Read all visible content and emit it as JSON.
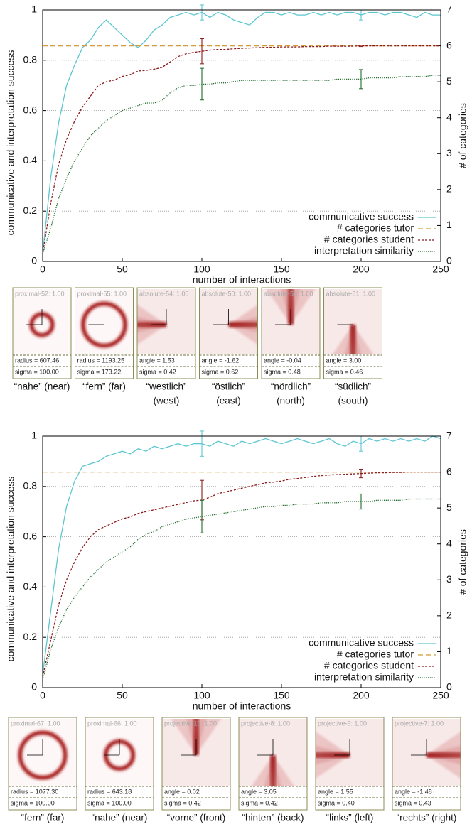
{
  "chart_data": [
    {
      "type": "line",
      "xlabel": "number of interactions",
      "ylabel": "communicative and interpretation success",
      "y2label": "# of categories",
      "xlim": [
        0,
        250
      ],
      "xticks": [
        0,
        50,
        100,
        150,
        200,
        250
      ],
      "ylim": [
        0,
        1
      ],
      "yticks": [
        0,
        0.2,
        0.4,
        0.6,
        0.8,
        1
      ],
      "y2lim": [
        0,
        7
      ],
      "y2ticks": [
        0,
        1,
        2,
        3,
        4,
        5,
        6,
        7
      ],
      "grid": true,
      "legend": "lower right",
      "x": [
        0,
        5,
        10,
        15,
        20,
        25,
        30,
        35,
        40,
        45,
        50,
        55,
        60,
        65,
        70,
        75,
        80,
        85,
        90,
        95,
        100,
        105,
        110,
        115,
        120,
        125,
        130,
        135,
        140,
        145,
        150,
        155,
        160,
        165,
        170,
        175,
        180,
        185,
        190,
        195,
        200,
        205,
        210,
        215,
        220,
        225,
        230,
        235,
        240,
        245,
        250
      ],
      "series": [
        {
          "name": "communicative success",
          "color": "#5cc6d0",
          "style": "solid",
          "axis": "y",
          "values": [
            0.03,
            0.33,
            0.55,
            0.7,
            0.78,
            0.85,
            0.88,
            0.93,
            0.96,
            0.93,
            0.9,
            0.87,
            0.85,
            0.88,
            0.92,
            0.94,
            0.97,
            0.98,
            0.99,
            0.98,
            0.99,
            0.97,
            0.99,
            0.98,
            0.96,
            0.95,
            0.94,
            0.97,
            0.99,
            0.99,
            0.98,
            0.99,
            0.98,
            0.98,
            0.99,
            0.98,
            0.99,
            0.98,
            0.99,
            0.99,
            0.98,
            0.99,
            0.99,
            0.98,
            0.99,
            0.99,
            0.98,
            0.97,
            0.99,
            0.98,
            0.98
          ],
          "error_x": [
            100,
            200
          ],
          "errors": [
            0.03,
            0.02
          ]
        },
        {
          "name": "# categories tutor",
          "color": "#d49a3a",
          "style": "long-dash",
          "axis": "y2",
          "values": [
            6,
            6,
            6,
            6,
            6,
            6,
            6,
            6,
            6,
            6,
            6,
            6,
            6,
            6,
            6,
            6,
            6,
            6,
            6,
            6,
            6,
            6,
            6,
            6,
            6,
            6,
            6,
            6,
            6,
            6,
            6,
            6,
            6,
            6,
            6,
            6,
            6,
            6,
            6,
            6,
            6,
            6,
            6,
            6,
            6,
            6,
            6,
            6,
            6,
            6,
            6
          ]
        },
        {
          "name": "# categories student",
          "color": "#8b1a1a",
          "style": "short-dash",
          "axis": "y2",
          "values": [
            0.2,
            1.6,
            2.7,
            3.4,
            3.9,
            4.3,
            4.6,
            4.9,
            5.0,
            5.05,
            5.15,
            5.2,
            5.3,
            5.32,
            5.35,
            5.4,
            5.55,
            5.7,
            5.78,
            5.82,
            5.85,
            5.88,
            5.9,
            5.9,
            5.92,
            5.93,
            5.94,
            5.95,
            5.96,
            5.96,
            5.97,
            5.97,
            5.97,
            5.98,
            5.98,
            5.98,
            5.99,
            5.99,
            5.99,
            5.99,
            6,
            6,
            6,
            6,
            6,
            6,
            6,
            6,
            6,
            6,
            6
          ],
          "error_x": [
            100,
            200
          ],
          "errors": [
            0.35,
            0.02
          ]
        },
        {
          "name": "interpretation similarity",
          "color": "#1f6b2a",
          "style": "dotted",
          "axis": "y",
          "values": [
            0.03,
            0.13,
            0.25,
            0.33,
            0.4,
            0.45,
            0.5,
            0.53,
            0.56,
            0.58,
            0.6,
            0.61,
            0.62,
            0.63,
            0.63,
            0.64,
            0.67,
            0.69,
            0.7,
            0.7,
            0.705,
            0.705,
            0.71,
            0.71,
            0.715,
            0.72,
            0.72,
            0.72,
            0.72,
            0.72,
            0.72,
            0.72,
            0.72,
            0.72,
            0.72,
            0.72,
            0.72,
            0.725,
            0.725,
            0.725,
            0.725,
            0.73,
            0.73,
            0.73,
            0.73,
            0.735,
            0.735,
            0.735,
            0.735,
            0.74,
            0.74
          ],
          "error_x": [
            100,
            200
          ],
          "errors": [
            0.063,
            0.038
          ]
        }
      ]
    },
    {
      "type": "line",
      "xlabel": "number of interactions",
      "ylabel": "communicative and interpretation success",
      "y2label": "# of categories",
      "xlim": [
        0,
        250
      ],
      "xticks": [
        0,
        50,
        100,
        150,
        200,
        250
      ],
      "ylim": [
        0,
        1
      ],
      "yticks": [
        0,
        0.2,
        0.4,
        0.6,
        0.8,
        1
      ],
      "y2lim": [
        0,
        7
      ],
      "y2ticks": [
        0,
        1,
        2,
        3,
        4,
        5,
        6,
        7
      ],
      "grid": true,
      "legend": "lower right",
      "x": [
        0,
        5,
        10,
        15,
        20,
        25,
        30,
        35,
        40,
        45,
        50,
        55,
        60,
        65,
        70,
        75,
        80,
        85,
        90,
        95,
        100,
        105,
        110,
        115,
        120,
        125,
        130,
        135,
        140,
        145,
        150,
        155,
        160,
        165,
        170,
        175,
        180,
        185,
        190,
        195,
        200,
        205,
        210,
        215,
        220,
        225,
        230,
        235,
        240,
        245,
        250
      ],
      "series": [
        {
          "name": "communicative success",
          "color": "#5cc6d0",
          "style": "solid",
          "axis": "y",
          "values": [
            0.05,
            0.3,
            0.55,
            0.72,
            0.82,
            0.88,
            0.89,
            0.9,
            0.92,
            0.93,
            0.94,
            0.93,
            0.95,
            0.94,
            0.96,
            0.95,
            0.96,
            0.97,
            0.96,
            0.97,
            0.97,
            0.96,
            0.98,
            0.97,
            0.96,
            0.98,
            0.97,
            0.98,
            0.99,
            0.98,
            0.97,
            0.98,
            0.99,
            0.98,
            0.97,
            0.98,
            0.99,
            0.97,
            0.96,
            0.98,
            0.97,
            0.99,
            0.98,
            0.99,
            0.98,
            0.99,
            0.98,
            0.99,
            0.98,
            1.0,
            0.99
          ],
          "error_x": [
            100,
            200
          ],
          "errors": [
            0.05,
            0.03
          ]
        },
        {
          "name": "# categories tutor",
          "color": "#d49a3a",
          "style": "long-dash",
          "axis": "y2",
          "values": [
            6,
            6,
            6,
            6,
            6,
            6,
            6,
            6,
            6,
            6,
            6,
            6,
            6,
            6,
            6,
            6,
            6,
            6,
            6,
            6,
            6,
            6,
            6,
            6,
            6,
            6,
            6,
            6,
            6,
            6,
            6,
            6,
            6,
            6,
            6,
            6,
            6,
            6,
            6,
            6,
            6,
            6,
            6,
            6,
            6,
            6,
            6,
            6,
            6,
            6,
            6
          ]
        },
        {
          "name": "# categories student",
          "color": "#8b1a1a",
          "style": "short-dash",
          "axis": "y2",
          "values": [
            0.3,
            1.3,
            2.3,
            3.0,
            3.5,
            3.9,
            4.2,
            4.4,
            4.5,
            4.6,
            4.7,
            4.75,
            4.85,
            4.9,
            4.95,
            5.0,
            5.05,
            5.1,
            5.15,
            5.2,
            5.22,
            5.3,
            5.4,
            5.45,
            5.5,
            5.55,
            5.6,
            5.65,
            5.7,
            5.72,
            5.75,
            5.8,
            5.82,
            5.85,
            5.88,
            5.9,
            5.92,
            5.93,
            5.94,
            5.95,
            5.96,
            5.97,
            5.98,
            5.98,
            5.99,
            5.99,
            6,
            6,
            6,
            6,
            6
          ],
          "error_x": [
            100,
            200
          ],
          "errors": [
            0.55,
            0.12
          ]
        },
        {
          "name": "interpretation similarity",
          "color": "#1f6b2a",
          "style": "dotted",
          "axis": "y",
          "values": [
            0.03,
            0.15,
            0.24,
            0.31,
            0.36,
            0.4,
            0.44,
            0.47,
            0.5,
            0.52,
            0.54,
            0.56,
            0.59,
            0.61,
            0.62,
            0.64,
            0.65,
            0.66,
            0.67,
            0.675,
            0.68,
            0.685,
            0.69,
            0.695,
            0.7,
            0.705,
            0.71,
            0.715,
            0.72,
            0.72,
            0.725,
            0.725,
            0.73,
            0.73,
            0.73,
            0.735,
            0.735,
            0.735,
            0.74,
            0.74,
            0.74,
            0.74,
            0.745,
            0.745,
            0.745,
            0.745,
            0.75,
            0.75,
            0.75,
            0.75,
            0.75
          ],
          "error_x": [
            100,
            200
          ],
          "errors": [
            0.065,
            0.03
          ]
        }
      ]
    }
  ],
  "panel_rows": [
    {
      "panels": [
        {
          "title": "proximal-52: 1.00",
          "params": [
            "radius = 607.46",
            "sigma = 100.00"
          ],
          "caption": [
            "“nahe” (near)"
          ]
        },
        {
          "title": "proximal-55: 1.00",
          "params": [
            "radius = 1193.25",
            "sigma = 173.22"
          ],
          "caption": [
            "“fern” (far)"
          ]
        },
        {
          "title": "absolute-54: 1.00",
          "params": [
            "angle = 1.53",
            "sigma = 0.42"
          ],
          "caption": [
            "“westlich”",
            "(west)"
          ]
        },
        {
          "title": "absolute-50: 1.00",
          "params": [
            "angle = -1.62",
            "sigma = 0.62"
          ],
          "caption": [
            "“östlich”",
            "(east)"
          ]
        },
        {
          "title": "absolute-53: 1.00",
          "params": [
            "angle = -0.04",
            "sigma = 0.48"
          ],
          "caption": [
            "“nördlich”",
            "(north)"
          ]
        },
        {
          "title": "absolute-51: 1.00",
          "params": [
            "angle = 3.00",
            "sigma = 0.46"
          ],
          "caption": [
            "“südlich”",
            "(south)"
          ]
        }
      ]
    },
    {
      "panels": [
        {
          "title": "proximal-67: 1.00",
          "params": [
            "radius = 1077.30",
            "sigma = 100.00"
          ],
          "caption": [
            "“fern” (far)"
          ]
        },
        {
          "title": "proximal-66: 1.00",
          "params": [
            "radius = 643.18",
            "sigma = 100.00"
          ],
          "caption": [
            "“nahe” (near)"
          ]
        },
        {
          "title": "projective-10: 1.00",
          "params": [
            "angle = 0.02",
            "sigma = 0.42"
          ],
          "caption": [
            "“vorne” (front)"
          ]
        },
        {
          "title": "projective-8: 1.00",
          "params": [
            "angle = 3.05",
            "sigma = 0.42"
          ],
          "caption": [
            "“hinten” (back)"
          ]
        },
        {
          "title": "projective-9: 1.00",
          "params": [
            "angle = 1.55",
            "sigma = 0.40"
          ],
          "caption": [
            "“links” (left)"
          ]
        },
        {
          "title": "projective-7: 1.00",
          "params": [
            "angle = -1.48",
            "sigma = 0.43"
          ],
          "caption": [
            "“rechts” (right)"
          ]
        }
      ]
    }
  ]
}
